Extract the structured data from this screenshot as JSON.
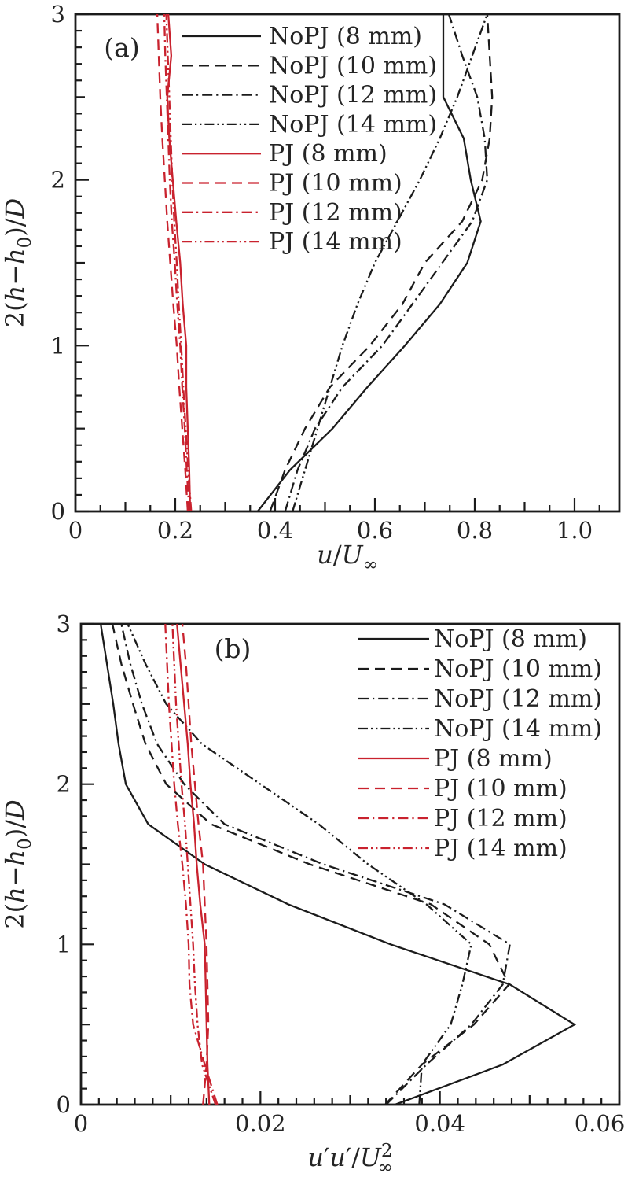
{
  "colors": {
    "black": "#1b1b1b",
    "red": "#c9222e",
    "text": "#242424",
    "background": "#ffffff"
  },
  "chart_data": [
    {
      "id": "a",
      "type": "line",
      "panel_label": "(a)",
      "xlabel": "u/U∞",
      "ylabel": "2(h−h₀)/D",
      "xlabel_parts": [
        {
          "t": "u",
          "i": 1
        },
        {
          "t": "/"
        },
        {
          "t": "U",
          "i": 1
        },
        {
          "t": "∞",
          "sub": 1
        }
      ],
      "ylabel_parts": [
        {
          "t": "2("
        },
        {
          "t": "h",
          "i": 1
        },
        {
          "t": "−"
        },
        {
          "t": "h",
          "i": 1
        },
        {
          "t": "0",
          "sub": 1
        },
        {
          "t": ")/"
        },
        {
          "t": "D",
          "i": 1
        }
      ],
      "xlim": [
        0,
        1.0898
      ],
      "ylim": [
        0,
        3
      ],
      "grid": false,
      "legend_position": "top-left-inside",
      "xticks": {
        "minor": 0.05,
        "medium": 0.1,
        "major": 0.2,
        "labels": [
          "0",
          "0.2",
          "0.4",
          "0.6",
          "0.8",
          "1.0"
        ],
        "label_values": [
          0,
          0.2,
          0.4,
          0.6,
          0.8,
          1.0
        ]
      },
      "yticks": {
        "minor": 0.1,
        "medium": 0.5,
        "major": 1,
        "labels": [
          "0",
          "1",
          "2",
          "3"
        ],
        "label_values": [
          0,
          1,
          2,
          3
        ]
      },
      "y_points": [
        0,
        0.25,
        0.5,
        0.75,
        1,
        1.25,
        1.5,
        1.75,
        2,
        2.25,
        2.5,
        2.75,
        3
      ],
      "series": [
        {
          "name": "NoPJ (8 mm)",
          "color": "black",
          "style": "solid",
          "x": [
            0.365,
            0.43,
            0.515,
            0.585,
            0.66,
            0.73,
            0.785,
            0.812,
            0.792,
            0.778,
            0.737,
            0.737,
            0.737
          ]
        },
        {
          "name": "NoPJ (10 mm)",
          "color": "black",
          "style": "dashed",
          "x": [
            0.39,
            0.42,
            0.46,
            0.51,
            0.59,
            0.655,
            0.7,
            0.775,
            0.815,
            0.83,
            0.835,
            0.83,
            0.825
          ]
        },
        {
          "name": "NoPJ (12 mm)",
          "color": "black",
          "style": "dashdot",
          "x": [
            0.42,
            0.445,
            0.48,
            0.535,
            0.615,
            0.675,
            0.735,
            0.795,
            0.825,
            0.82,
            0.805,
            0.775,
            0.748
          ]
        },
        {
          "name": "NoPJ (14 mm)",
          "color": "black",
          "style": "dashdotdot",
          "x": [
            0.435,
            0.46,
            0.485,
            0.51,
            0.535,
            0.565,
            0.6,
            0.645,
            0.69,
            0.73,
            0.765,
            0.795,
            0.825
          ]
        },
        {
          "name": "PJ (8 mm)",
          "color": "red",
          "style": "solid",
          "x": [
            0.23,
            0.228,
            0.225,
            0.222,
            0.222,
            0.215,
            0.21,
            0.202,
            0.195,
            0.188,
            0.184,
            0.192,
            0.186
          ]
        },
        {
          "name": "PJ (10 mm)",
          "color": "red",
          "style": "dashed",
          "x": [
            0.225,
            0.22,
            0.214,
            0.208,
            0.203,
            0.196,
            0.19,
            0.184,
            0.179,
            0.174,
            0.17,
            0.167,
            0.164
          ]
        },
        {
          "name": "PJ (12 mm)",
          "color": "red",
          "style": "dashdot",
          "x": [
            0.228,
            0.223,
            0.219,
            0.214,
            0.21,
            0.204,
            0.199,
            0.193,
            0.189,
            0.186,
            0.183,
            0.18,
            0.178
          ]
        },
        {
          "name": "PJ (14 mm)",
          "color": "red",
          "style": "dashdotdot",
          "x": [
            0.232,
            0.226,
            0.221,
            0.216,
            0.212,
            0.207,
            0.203,
            0.198,
            0.194,
            0.191,
            0.188,
            0.185,
            0.182
          ]
        }
      ]
    },
    {
      "id": "b",
      "type": "line",
      "panel_label": "(b)",
      "xlabel": "u′u′/U∞²",
      "ylabel": "2(h−h₀)/D",
      "xlabel_parts": [
        {
          "t": "u",
          "i": 1
        },
        {
          "t": "′"
        },
        {
          "t": "u",
          "i": 1
        },
        {
          "t": "′"
        },
        {
          "t": "/"
        },
        {
          "t": "U",
          "i": 1
        },
        {
          "t": "2",
          "sup": 1
        },
        {
          "t": "∞",
          "sub": 1,
          "dx": -19
        }
      ],
      "ylabel_parts": [
        {
          "t": "2("
        },
        {
          "t": "h",
          "i": 1
        },
        {
          "t": "−"
        },
        {
          "t": "h",
          "i": 1
        },
        {
          "t": "0",
          "sub": 1
        },
        {
          "t": ")/"
        },
        {
          "t": "D",
          "i": 1
        }
      ],
      "xlim": [
        0,
        0.06
      ],
      "ylim": [
        0,
        3
      ],
      "grid": false,
      "legend_position": "top-right-inside",
      "xticks": {
        "minor": 0.002,
        "medium": 0.01,
        "major": 0.02,
        "labels": [
          "0",
          "0.02",
          "0.04",
          "0.06"
        ],
        "label_values": [
          0,
          0.02,
          0.04,
          0.06
        ]
      },
      "yticks": {
        "minor": 0.1,
        "medium": 0.5,
        "major": 1,
        "labels": [
          "0",
          "1",
          "2",
          "3"
        ],
        "label_values": [
          0,
          1,
          2,
          3
        ]
      },
      "y_points": [
        0,
        0.25,
        0.5,
        0.75,
        1,
        1.25,
        1.5,
        1.75,
        2,
        2.25,
        2.5,
        2.75,
        3
      ],
      "series": [
        {
          "name": "NoPJ (8 mm)",
          "color": "black",
          "style": "solid",
          "x": [
            0.035,
            0.047,
            0.055,
            0.0478,
            0.0345,
            0.0231,
            0.0138,
            0.0075,
            0.005,
            0.0042,
            0.0036,
            0.0029,
            0.0022
          ]
        },
        {
          "name": "NoPJ (10 mm)",
          "color": "black",
          "style": "dashed",
          "x": [
            0.0339,
            0.038,
            0.0438,
            0.0477,
            0.0455,
            0.039,
            0.0255,
            0.0145,
            0.0095,
            0.0072,
            0.0058,
            0.0045,
            0.0035
          ]
        },
        {
          "name": "NoPJ (12 mm)",
          "color": "black",
          "style": "dashdot",
          "x": [
            0.034,
            0.0385,
            0.0435,
            0.047,
            0.0478,
            0.0405,
            0.027,
            0.016,
            0.0115,
            0.0085,
            0.0068,
            0.0055,
            0.0045
          ]
        },
        {
          "name": "NoPJ (14 mm)",
          "color": "black",
          "style": "dashdotdot",
          "x": [
            0.0377,
            0.038,
            0.0412,
            0.0425,
            0.0435,
            0.0385,
            0.032,
            0.0265,
            0.02,
            0.0135,
            0.0095,
            0.0072,
            0.0052
          ]
        },
        {
          "name": "PJ (8 mm)",
          "color": "red",
          "style": "solid",
          "x": [
            0.0143,
            0.0141,
            0.014,
            0.0139,
            0.0138,
            0.0133,
            0.0129,
            0.0126,
            0.0122,
            0.0119,
            0.0115,
            0.0111,
            0.0107
          ]
        },
        {
          "name": "PJ (10 mm)",
          "color": "red",
          "style": "dashed",
          "x": [
            0.0136,
            0.014,
            0.0142,
            0.0141,
            0.014,
            0.0138,
            0.0136,
            0.0131,
            0.0127,
            0.0123,
            0.012,
            0.0117,
            0.0113
          ]
        },
        {
          "name": "PJ (12 mm)",
          "color": "red",
          "style": "dashdot",
          "x": [
            0.0152,
            0.0138,
            0.0125,
            0.0121,
            0.012,
            0.0117,
            0.0113,
            0.0108,
            0.0104,
            0.0101,
            0.0098,
            0.0096,
            0.0094
          ]
        },
        {
          "name": "PJ (14 mm)",
          "color": "red",
          "style": "dashdotdot",
          "x": [
            0.015,
            0.0135,
            0.013,
            0.0127,
            0.0125,
            0.0122,
            0.0119,
            0.0116,
            0.0112,
            0.0109,
            0.0106,
            0.0104,
            0.0102
          ]
        }
      ]
    }
  ]
}
